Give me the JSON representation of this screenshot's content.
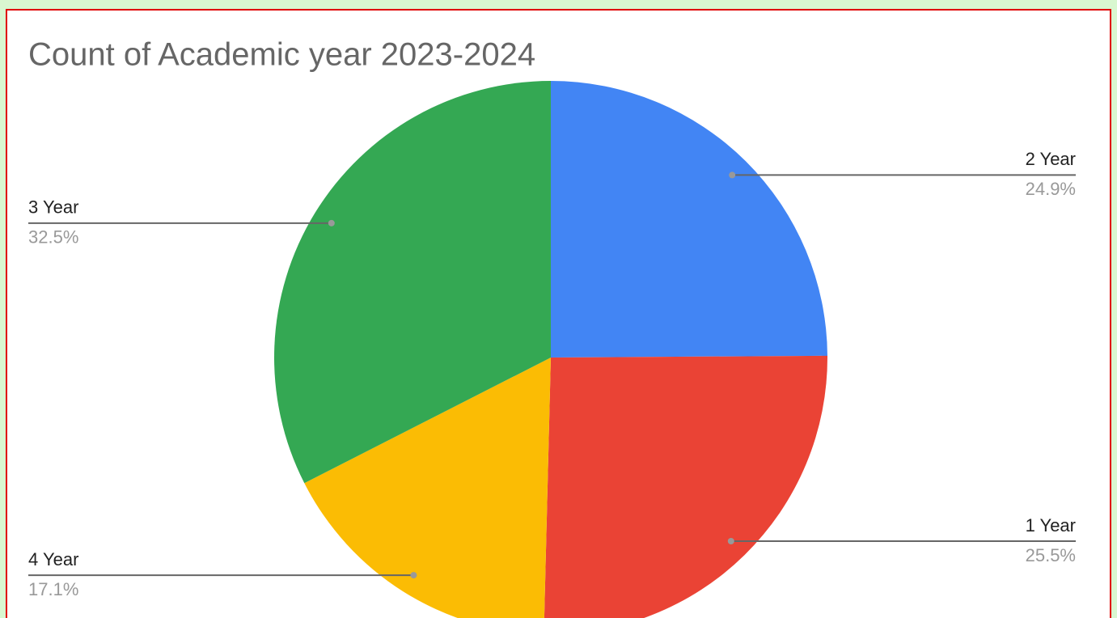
{
  "chart_data": {
    "type": "pie",
    "title": "Count of Academic year 2023-2024",
    "categories": [
      "2 Year",
      "1 Year",
      "4 Year",
      "3 Year"
    ],
    "values": [
      24.9,
      25.5,
      17.1,
      32.5
    ],
    "value_labels": [
      "24.9%",
      "25.5%",
      "17.1%",
      "32.5%"
    ],
    "colors": [
      "#4285f4",
      "#ea4335",
      "#fbbc04",
      "#34a853"
    ]
  }
}
